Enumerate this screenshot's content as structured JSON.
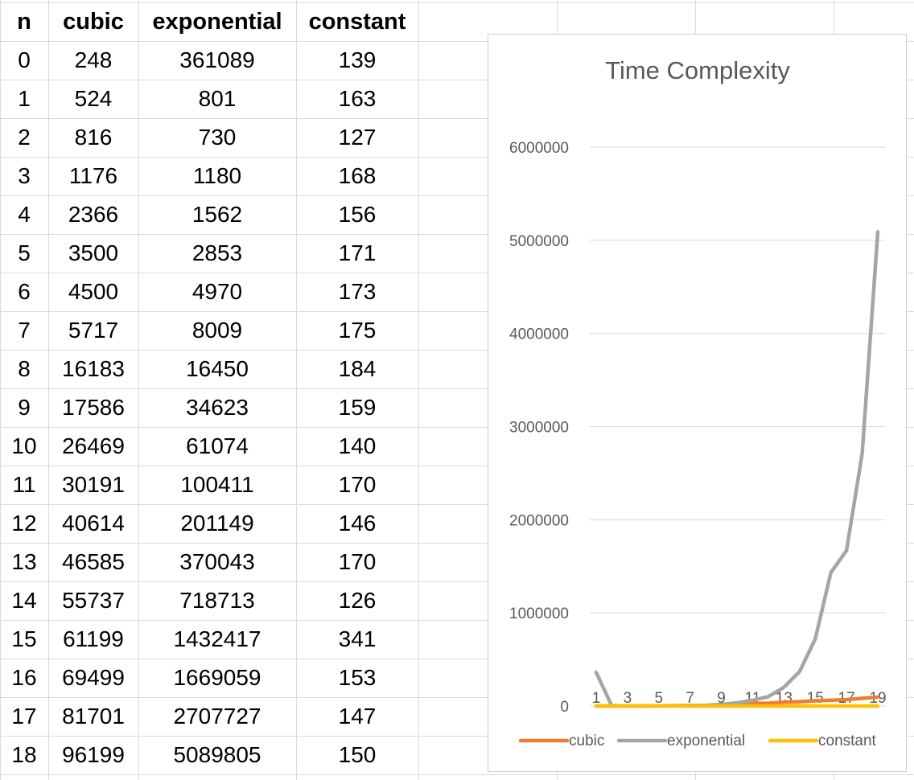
{
  "table": {
    "headers": [
      "n",
      "cubic",
      "exponential",
      "constant"
    ],
    "rows": [
      [
        "0",
        "248",
        "361089",
        "139"
      ],
      [
        "1",
        "524",
        "801",
        "163"
      ],
      [
        "2",
        "816",
        "730",
        "127"
      ],
      [
        "3",
        "1176",
        "1180",
        "168"
      ],
      [
        "4",
        "2366",
        "1562",
        "156"
      ],
      [
        "5",
        "3500",
        "2853",
        "171"
      ],
      [
        "6",
        "4500",
        "4970",
        "173"
      ],
      [
        "7",
        "5717",
        "8009",
        "175"
      ],
      [
        "8",
        "16183",
        "16450",
        "184"
      ],
      [
        "9",
        "17586",
        "34623",
        "159"
      ],
      [
        "10",
        "26469",
        "61074",
        "140"
      ],
      [
        "11",
        "30191",
        "100411",
        "170"
      ],
      [
        "12",
        "40614",
        "201149",
        "146"
      ],
      [
        "13",
        "46585",
        "370043",
        "170"
      ],
      [
        "14",
        "55737",
        "718713",
        "126"
      ],
      [
        "15",
        "61199",
        "1432417",
        "341"
      ],
      [
        "16",
        "69499",
        "1669059",
        "153"
      ],
      [
        "17",
        "81701",
        "2707727",
        "147"
      ],
      [
        "18",
        "96199",
        "5089805",
        "150"
      ]
    ]
  },
  "chart_data": {
    "type": "line",
    "title": "Time Complexity",
    "x": [
      1,
      2,
      3,
      4,
      5,
      6,
      7,
      8,
      9,
      10,
      11,
      12,
      13,
      14,
      15,
      16,
      17,
      18,
      19
    ],
    "x_tick_labels": [
      "1",
      "3",
      "5",
      "7",
      "9",
      "11",
      "13",
      "15",
      "17",
      "19"
    ],
    "ylim": [
      0,
      6000000
    ],
    "y_ticks": [
      "0",
      "1000000",
      "2000000",
      "3000000",
      "4000000",
      "5000000",
      "6000000"
    ],
    "grid": true,
    "legend": "bottom",
    "series": [
      {
        "name": "cubic",
        "color": "#ED7D31",
        "values": [
          248,
          524,
          816,
          1176,
          2366,
          3500,
          4500,
          5717,
          16183,
          17586,
          26469,
          30191,
          40614,
          46585,
          55737,
          61199,
          69499,
          81701,
          96199
        ]
      },
      {
        "name": "exponential",
        "color": "#A5A5A5",
        "values": [
          361089,
          801,
          730,
          1180,
          1562,
          2853,
          4970,
          8009,
          16450,
          34623,
          61074,
          100411,
          201149,
          370043,
          718713,
          1432417,
          1669059,
          2707727,
          5089805
        ]
      },
      {
        "name": "constant",
        "color": "#FFC000",
        "values": [
          139,
          163,
          127,
          168,
          156,
          171,
          173,
          175,
          184,
          159,
          140,
          170,
          146,
          170,
          126,
          341,
          153,
          147,
          150
        ]
      }
    ]
  }
}
